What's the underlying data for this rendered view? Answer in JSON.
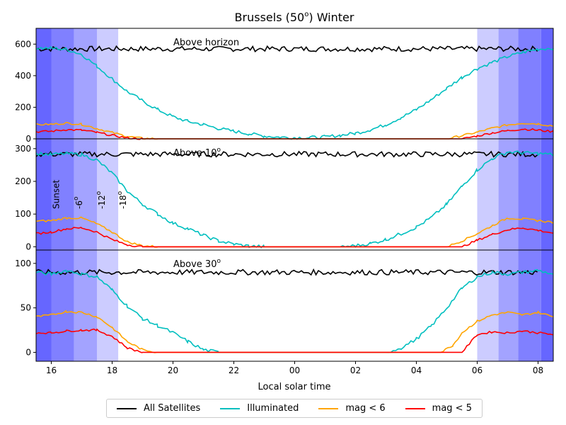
{
  "chart_data": {
    "type": "line",
    "title_main": "Brussels (50",
    "title_sup": "o",
    "title_tail": ") Winter",
    "xlabel": "Local solar time",
    "x_tick_labels": [
      "16",
      "18",
      "20",
      "22",
      "00",
      "02",
      "04",
      "06",
      "08"
    ],
    "x_tick_hours": [
      16,
      18,
      20,
      22,
      24,
      26,
      28,
      30,
      32
    ],
    "xlim": [
      15.5,
      32.5
    ],
    "twilight": {
      "evening": [
        {
          "from": 15.5,
          "to": 16.0,
          "level": 4
        },
        {
          "from": 16.0,
          "to": 16.75,
          "level": 3
        },
        {
          "from": 16.75,
          "to": 17.5,
          "level": 2
        },
        {
          "from": 17.5,
          "to": 18.2,
          "level": 1
        }
      ],
      "morning": [
        {
          "from": 30.0,
          "to": 30.7,
          "level": 1
        },
        {
          "from": 30.7,
          "to": 31.35,
          "level": 2
        },
        {
          "from": 31.35,
          "to": 32.1,
          "level": 3
        },
        {
          "from": 32.1,
          "to": 32.5,
          "level": 4
        }
      ],
      "labels": [
        {
          "text": "Sunset",
          "at": 16.0
        },
        {
          "text": "-6",
          "sup": "o",
          "at": 16.75
        },
        {
          "text": "-12",
          "sup": "o",
          "at": 17.5
        },
        {
          "text": "-18",
          "sup": "o",
          "at": 18.2
        }
      ]
    },
    "panels": [
      {
        "label": "Above horizon",
        "label_sup": "",
        "ylim": [
          0,
          700
        ],
        "yticks": [
          0,
          200,
          400,
          600
        ],
        "all": 570,
        "illum": [
          [
            15.5,
            575
          ],
          [
            16.0,
            574
          ],
          [
            16.5,
            567
          ],
          [
            17.0,
            535
          ],
          [
            17.5,
            460
          ],
          [
            18.0,
            380
          ],
          [
            18.5,
            300
          ],
          [
            19.0,
            240
          ],
          [
            19.5,
            185
          ],
          [
            20.0,
            140
          ],
          [
            20.5,
            110
          ],
          [
            21.0,
            90
          ],
          [
            21.5,
            65
          ],
          [
            22.0,
            48
          ],
          [
            22.5,
            32
          ],
          [
            23.0,
            18
          ],
          [
            23.5,
            10
          ],
          [
            24.0,
            8
          ],
          [
            24.5,
            8
          ],
          [
            25.0,
            12
          ],
          [
            25.5,
            22
          ],
          [
            26.0,
            35
          ],
          [
            26.5,
            58
          ],
          [
            27.0,
            90
          ],
          [
            27.5,
            135
          ],
          [
            28.0,
            185
          ],
          [
            28.5,
            250
          ],
          [
            29.0,
            320
          ],
          [
            29.5,
            390
          ],
          [
            30.0,
            445
          ],
          [
            30.5,
            485
          ],
          [
            31.0,
            520
          ],
          [
            31.5,
            548
          ],
          [
            32.0,
            568
          ],
          [
            32.5,
            575
          ]
        ],
        "mag6": [
          [
            15.5,
            90
          ],
          [
            16.0,
            92
          ],
          [
            16.5,
            100
          ],
          [
            17.0,
            92
          ],
          [
            17.5,
            65
          ],
          [
            18.0,
            40
          ],
          [
            18.5,
            15
          ],
          [
            19.0,
            3
          ],
          [
            19.5,
            0
          ],
          [
            29.0,
            0
          ],
          [
            29.5,
            20
          ],
          [
            30.0,
            42
          ],
          [
            30.5,
            68
          ],
          [
            31.0,
            88
          ],
          [
            31.5,
            100
          ],
          [
            32.0,
            95
          ],
          [
            32.5,
            82
          ]
        ],
        "mag5": [
          [
            15.5,
            45
          ],
          [
            16.0,
            48
          ],
          [
            16.5,
            58
          ],
          [
            17.0,
            55
          ],
          [
            17.5,
            40
          ],
          [
            18.0,
            22
          ],
          [
            18.5,
            6
          ],
          [
            19.0,
            0
          ],
          [
            29.5,
            0
          ],
          [
            30.0,
            18
          ],
          [
            30.5,
            38
          ],
          [
            31.0,
            52
          ],
          [
            31.5,
            62
          ],
          [
            32.0,
            55
          ],
          [
            32.5,
            45
          ]
        ]
      },
      {
        "label": "Above 10",
        "label_sup": "o",
        "ylim": [
          -10,
          330
        ],
        "yticks": [
          0,
          100,
          200,
          300
        ],
        "all": 283,
        "illum": [
          [
            15.5,
            285
          ],
          [
            16.0,
            282
          ],
          [
            16.5,
            285
          ],
          [
            17.0,
            282
          ],
          [
            17.5,
            265
          ],
          [
            18.0,
            225
          ],
          [
            18.5,
            170
          ],
          [
            19.0,
            130
          ],
          [
            19.5,
            100
          ],
          [
            20.0,
            72
          ],
          [
            20.5,
            55
          ],
          [
            21.0,
            35
          ],
          [
            21.5,
            18
          ],
          [
            22.0,
            8
          ],
          [
            22.5,
            2
          ],
          [
            23.0,
            0
          ],
          [
            25.5,
            0
          ],
          [
            26.0,
            3
          ],
          [
            26.5,
            10
          ],
          [
            27.0,
            22
          ],
          [
            27.5,
            40
          ],
          [
            28.0,
            60
          ],
          [
            28.5,
            90
          ],
          [
            29.0,
            130
          ],
          [
            29.5,
            185
          ],
          [
            30.0,
            235
          ],
          [
            30.5,
            270
          ],
          [
            31.0,
            290
          ],
          [
            31.5,
            287
          ],
          [
            32.0,
            285
          ],
          [
            32.5,
            282
          ]
        ],
        "mag6": [
          [
            15.5,
            78
          ],
          [
            16.0,
            80
          ],
          [
            16.5,
            88
          ],
          [
            17.0,
            88
          ],
          [
            17.5,
            70
          ],
          [
            18.0,
            45
          ],
          [
            18.5,
            15
          ],
          [
            19.0,
            3
          ],
          [
            19.5,
            0
          ],
          [
            29.0,
            0
          ],
          [
            29.5,
            18
          ],
          [
            30.0,
            40
          ],
          [
            30.5,
            65
          ],
          [
            31.0,
            88
          ],
          [
            31.5,
            85
          ],
          [
            32.0,
            80
          ],
          [
            32.5,
            75
          ]
        ],
        "mag5": [
          [
            15.5,
            40
          ],
          [
            16.0,
            45
          ],
          [
            16.5,
            55
          ],
          [
            17.0,
            58
          ],
          [
            17.5,
            45
          ],
          [
            18.0,
            22
          ],
          [
            18.5,
            6
          ],
          [
            19.0,
            0
          ],
          [
            29.5,
            0
          ],
          [
            30.0,
            20
          ],
          [
            30.5,
            38
          ],
          [
            31.0,
            52
          ],
          [
            31.5,
            58
          ],
          [
            32.0,
            50
          ],
          [
            32.5,
            42
          ]
        ]
      },
      {
        "label": "Above 30",
        "label_sup": "o",
        "ylim": [
          -10,
          115
        ],
        "yticks": [
          0,
          50,
          100
        ],
        "all": 90,
        "illum": [
          [
            15.5,
            90
          ],
          [
            16.0,
            88
          ],
          [
            16.5,
            92
          ],
          [
            17.0,
            88
          ],
          [
            17.5,
            85
          ],
          [
            18.0,
            70
          ],
          [
            18.5,
            52
          ],
          [
            19.0,
            38
          ],
          [
            19.5,
            30
          ],
          [
            20.0,
            22
          ],
          [
            20.5,
            12
          ],
          [
            21.0,
            3
          ],
          [
            21.5,
            0
          ],
          [
            27.0,
            0
          ],
          [
            27.5,
            5
          ],
          [
            28.0,
            15
          ],
          [
            28.5,
            30
          ],
          [
            29.0,
            50
          ],
          [
            29.5,
            72
          ],
          [
            30.0,
            85
          ],
          [
            30.5,
            90
          ],
          [
            31.0,
            88
          ],
          [
            31.5,
            90
          ],
          [
            32.0,
            92
          ],
          [
            32.5,
            88
          ]
        ],
        "mag6": [
          [
            15.5,
            40
          ],
          [
            16.0,
            42
          ],
          [
            16.5,
            46
          ],
          [
            17.0,
            45
          ],
          [
            17.5,
            40
          ],
          [
            18.0,
            28
          ],
          [
            18.5,
            12
          ],
          [
            19.0,
            3
          ],
          [
            19.5,
            0
          ],
          [
            28.8,
            0
          ],
          [
            29.2,
            8
          ],
          [
            29.5,
            22
          ],
          [
            30.0,
            35
          ],
          [
            30.5,
            42
          ],
          [
            31.0,
            45
          ],
          [
            31.5,
            42
          ],
          [
            32.0,
            45
          ],
          [
            32.5,
            40
          ]
        ],
        "mag5": [
          [
            15.5,
            22
          ],
          [
            16.0,
            22
          ],
          [
            16.5,
            24
          ],
          [
            17.0,
            25
          ],
          [
            17.5,
            25
          ],
          [
            18.0,
            18
          ],
          [
            18.5,
            5
          ],
          [
            19.0,
            0
          ],
          [
            29.5,
            0
          ],
          [
            30.0,
            20
          ],
          [
            30.5,
            23
          ],
          [
            31.0,
            22
          ],
          [
            31.5,
            24
          ],
          [
            32.0,
            22
          ],
          [
            32.5,
            20
          ]
        ]
      }
    ],
    "series": [
      {
        "name": "All Satellites",
        "key": "all",
        "color": "#000000"
      },
      {
        "name": "Illuminated",
        "key": "illum",
        "color": "#00bfbf"
      },
      {
        "name": "mag < 6",
        "key": "mag6",
        "color": "#ffa500"
      },
      {
        "name": "mag < 5",
        "key": "mag5",
        "color": "#ff0000"
      }
    ],
    "twilight_colors": [
      "#ccccff",
      "#a3a3ff",
      "#8080ff",
      "#6666ff"
    ]
  }
}
